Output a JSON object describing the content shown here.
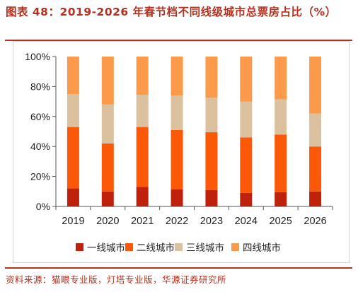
{
  "title": "图表 48：2019-2026 年春节档不同线级城市总票房占比（%）",
  "source": "资料来源：猫眼专业版，灯塔专业版，华源证券研究所",
  "chart_data": {
    "type": "bar",
    "stacked": true,
    "categories": [
      "2019",
      "2020",
      "2021",
      "2022",
      "2023",
      "2024",
      "2025",
      "2026"
    ],
    "series": [
      {
        "name": "一线城市",
        "color": "#c0210d",
        "values": [
          12,
          10,
          13,
          11.5,
          11,
          9,
          9.5,
          10
        ]
      },
      {
        "name": "二线城市",
        "color": "#fb5808",
        "values": [
          41,
          32,
          40,
          39.5,
          38.5,
          37,
          38.5,
          30
        ]
      },
      {
        "name": "三线城市",
        "color": "#dcc19f",
        "values": [
          22,
          26,
          21.5,
          23,
          23,
          24,
          23.5,
          22
        ]
      },
      {
        "name": "四线城市",
        "color": "#fa9a4a",
        "values": [
          25,
          32,
          25.5,
          26,
          27.5,
          30,
          28.5,
          38
        ]
      }
    ],
    "ylim": [
      0,
      100
    ],
    "yticks": [
      0,
      20,
      40,
      60,
      80,
      100
    ],
    "ytick_labels": [
      "0%",
      "20%",
      "40%",
      "60%",
      "80%",
      "100%"
    ],
    "legend_position": "bottom",
    "grid": false
  }
}
